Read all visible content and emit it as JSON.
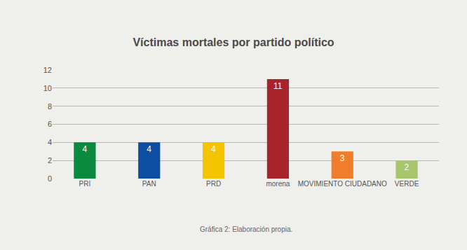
{
  "chart_data": {
    "type": "bar",
    "title": "Víctimas mortales por partido político",
    "categories": [
      "PRI",
      "PAN",
      "PRD",
      "morena",
      "MOVIMIENTO CIUDADANO",
      "VERDE"
    ],
    "values": [
      4,
      4,
      4,
      11,
      3,
      2
    ],
    "colors": [
      "#0a8a3e",
      "#0b4ea2",
      "#f5c400",
      "#a8242c",
      "#ef7d2c",
      "#a6c56c"
    ],
    "ylim": [
      0,
      12
    ],
    "yticks": [
      0,
      2,
      4,
      6,
      8,
      10,
      12
    ],
    "grid": true,
    "data_labels": true,
    "annotations": [
      "Gráfica 2: Elaboración propia."
    ]
  }
}
